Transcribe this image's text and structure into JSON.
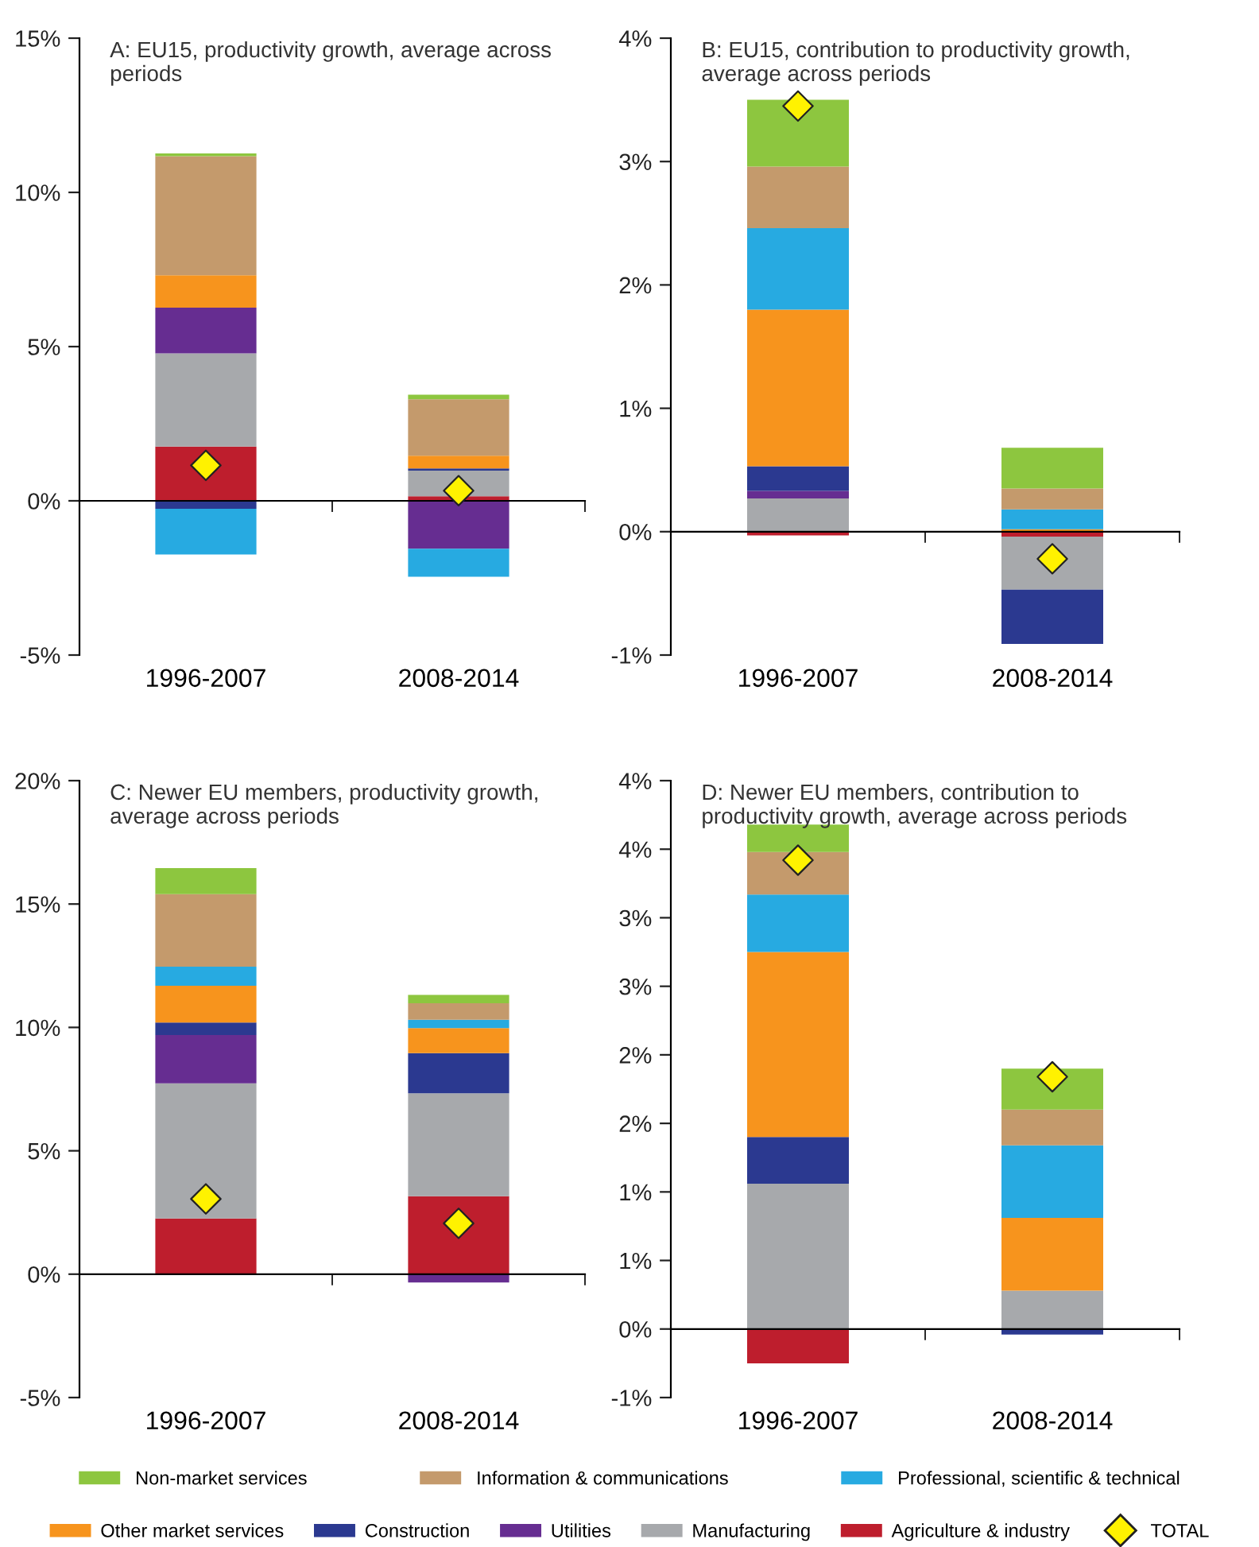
{
  "chart_data": [
    {
      "type": "bar",
      "stacked": true,
      "title": "A: EU15, productivity growth, average across periods",
      "categories": [
        "1996-2007",
        "2008-2014"
      ],
      "ylim": [
        -5,
        15
      ],
      "yticks": [
        {
          "value": -5,
          "label": "-5%"
        },
        {
          "value": 0,
          "label": "0%"
        },
        {
          "value": 5,
          "label": "5%"
        },
        {
          "value": 10,
          "label": "10%"
        },
        {
          "value": 15,
          "label": "15%"
        }
      ],
      "legend": "bottom",
      "series": [
        {
          "name": "Agriculture & industry",
          "color": "#be1e2d",
          "values": [
            1.76,
            0.15
          ]
        },
        {
          "name": "Manufacturing",
          "color": "#a7a9ac",
          "values": [
            3.02,
            0.83
          ]
        },
        {
          "name": "Utilities",
          "color": "#662d91",
          "values": [
            1.48,
            -1.55
          ]
        },
        {
          "name": "Construction",
          "color": "#2b3990",
          "values": [
            -0.26,
            0.07
          ]
        },
        {
          "name": "Other market services",
          "color": "#f7941d",
          "values": [
            1.05,
            0.41
          ]
        },
        {
          "name": "Professional, scientific & technical",
          "color": "#27aae1",
          "values": [
            -1.48,
            -0.91
          ]
        },
        {
          "name": "Information & communications",
          "color": "#c49a6c",
          "values": [
            3.86,
            1.83
          ]
        },
        {
          "name": "Non-market services",
          "color": "#8dc63f",
          "values": [
            0.09,
            0.15
          ]
        },
        {
          "name": "TOTAL",
          "type": "scatter",
          "marker": "diamond",
          "color": "#fff200",
          "x": [
            "1996-2007",
            "2008-2014"
          ],
          "values": [
            1.15,
            0.33
          ]
        }
      ]
    },
    {
      "type": "bar",
      "stacked": true,
      "title": "B: EU15, contribution to productivity growth, average across periods",
      "categories": [
        "1996-2007",
        "2008-2014"
      ],
      "ylim": [
        -1,
        4
      ],
      "yticks": [
        {
          "value": -1,
          "label": "-1%"
        },
        {
          "value": 0,
          "label": "0%"
        },
        {
          "value": 1,
          "label": "1%"
        },
        {
          "value": 2,
          "label": "2%"
        },
        {
          "value": 3,
          "label": "3%"
        },
        {
          "value": 4,
          "label": "4%"
        }
      ],
      "legend": "bottom",
      "series": [
        {
          "name": "Agriculture & industry",
          "color": "#be1e2d",
          "values": [
            -0.03,
            -0.04
          ]
        },
        {
          "name": "Manufacturing",
          "color": "#a7a9ac",
          "values": [
            0.27,
            -0.43
          ]
        },
        {
          "name": "Utilities",
          "color": "#662d91",
          "values": [
            0.06,
            0
          ]
        },
        {
          "name": "Construction",
          "color": "#2b3990",
          "values": [
            0.2,
            -0.44
          ]
        },
        {
          "name": "Other market services",
          "color": "#f7941d",
          "values": [
            1.27,
            0.02
          ]
        },
        {
          "name": "Professional, scientific & technical",
          "color": "#27aae1",
          "values": [
            0.66,
            0.16
          ]
        },
        {
          "name": "Information & communications",
          "color": "#c49a6c",
          "values": [
            0.5,
            0.17
          ]
        },
        {
          "name": "Non-market services",
          "color": "#8dc63f",
          "values": [
            0.54,
            0.33
          ]
        },
        {
          "name": "TOTAL",
          "type": "scatter",
          "marker": "diamond",
          "color": "#fff200",
          "x": [
            "1996-2007",
            "2008-2014"
          ],
          "values": [
            3.45,
            -0.22
          ]
        }
      ]
    },
    {
      "type": "bar",
      "stacked": true,
      "title": "C: Newer EU members, productivity growth, average across periods",
      "categories": [
        "1996-2007",
        "2008-2014"
      ],
      "ylim": [
        -5,
        20
      ],
      "yticks": [
        {
          "value": -5,
          "label": "-5%"
        },
        {
          "value": 0,
          "label": "0%"
        },
        {
          "value": 5,
          "label": "5%"
        },
        {
          "value": 10,
          "label": "10%"
        },
        {
          "value": 15,
          "label": "15%"
        },
        {
          "value": 20,
          "label": "20%"
        }
      ],
      "legend": "bottom",
      "series": [
        {
          "name": "Agriculture & industry",
          "color": "#be1e2d",
          "values": [
            2.26,
            3.16
          ]
        },
        {
          "name": "Manufacturing",
          "color": "#a7a9ac",
          "values": [
            5.47,
            4.17
          ]
        },
        {
          "name": "Utilities",
          "color": "#662d91",
          "values": [
            1.96,
            -0.34
          ]
        },
        {
          "name": "Construction",
          "color": "#2b3990",
          "values": [
            0.51,
            1.63
          ]
        },
        {
          "name": "Other market services",
          "color": "#f7941d",
          "values": [
            1.49,
            1.01
          ]
        },
        {
          "name": "Professional, scientific & technical",
          "color": "#27aae1",
          "values": [
            0.77,
            0.34
          ]
        },
        {
          "name": "Information & communications",
          "color": "#c49a6c",
          "values": [
            2.94,
            0.67
          ]
        },
        {
          "name": "Non-market services",
          "color": "#8dc63f",
          "values": [
            1.06,
            0.34
          ]
        },
        {
          "name": "TOTAL",
          "type": "scatter",
          "marker": "diamond",
          "color": "#fff200",
          "x": [
            "1996-2007",
            "2008-2014"
          ],
          "values": [
            3.05,
            2.06
          ]
        }
      ]
    },
    {
      "type": "bar",
      "stacked": true,
      "title": "D: Newer EU members, contribution to productivity growth, average across periods",
      "categories": [
        "1996-2007",
        "2008-2014"
      ],
      "ylim": [
        -0.5,
        4
      ],
      "yticks": [
        {
          "value": -0.5,
          "label": "-1%"
        },
        {
          "value": 0,
          "label": "0%"
        },
        {
          "value": 0.5,
          "label": "1%"
        },
        {
          "value": 1,
          "label": "1%"
        },
        {
          "value": 1.5,
          "label": "2%"
        },
        {
          "value": 2,
          "label": "2%"
        },
        {
          "value": 2.5,
          "label": "3%"
        },
        {
          "value": 3,
          "label": "3%"
        },
        {
          "value": 3.5,
          "label": "4%"
        },
        {
          "value": 4,
          "label": "4%"
        }
      ],
      "legend": "bottom",
      "series": [
        {
          "name": "Agriculture & industry",
          "color": "#be1e2d",
          "values": [
            -0.25,
            0
          ]
        },
        {
          "name": "Manufacturing",
          "color": "#a7a9ac",
          "values": [
            1.06,
            0.28
          ]
        },
        {
          "name": "Utilities",
          "color": "#662d91",
          "values": [
            0,
            0
          ]
        },
        {
          "name": "Construction",
          "color": "#2b3990",
          "values": [
            0.34,
            -0.04
          ]
        },
        {
          "name": "Other market services",
          "color": "#f7941d",
          "values": [
            1.35,
            0.53
          ]
        },
        {
          "name": "Professional, scientific & technical",
          "color": "#27aae1",
          "values": [
            0.42,
            0.53
          ]
        },
        {
          "name": "Information & communications",
          "color": "#c49a6c",
          "values": [
            0.31,
            0.26
          ]
        },
        {
          "name": "Non-market services",
          "color": "#8dc63f",
          "values": [
            0.2,
            0.3
          ]
        },
        {
          "name": "TOTAL",
          "type": "scatter",
          "marker": "diamond",
          "color": "#fff200",
          "x": [
            "1996-2007",
            "2008-2014"
          ],
          "values": [
            3.42,
            1.84
          ]
        }
      ]
    }
  ]
}
